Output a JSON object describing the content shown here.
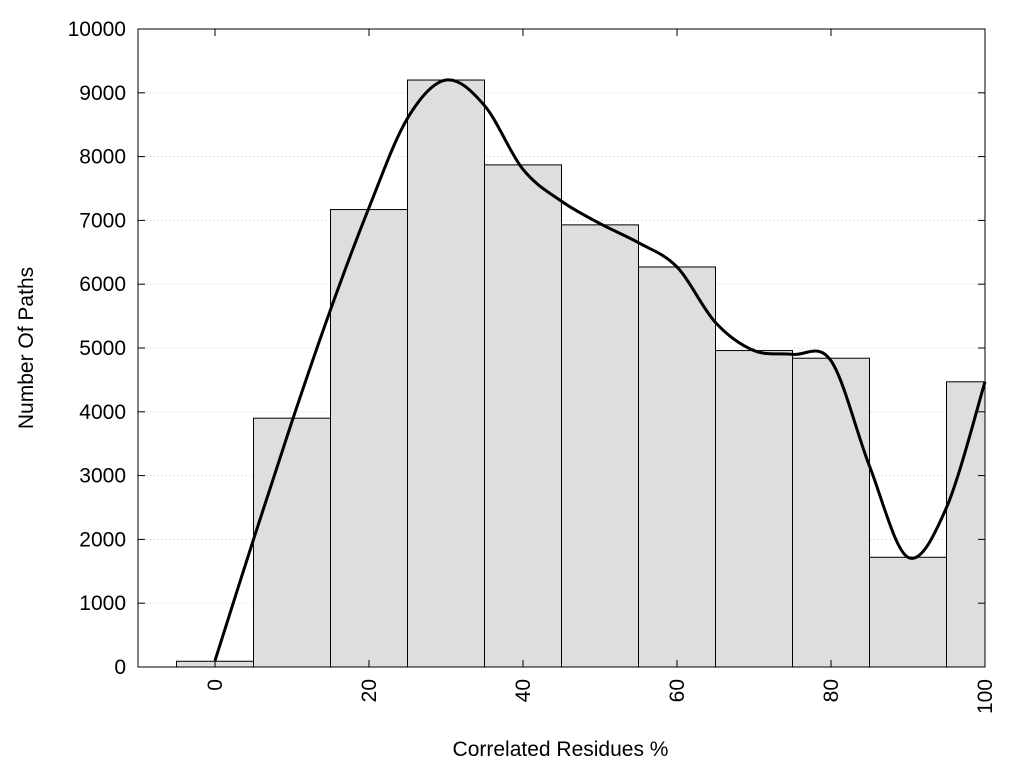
{
  "chart_data": {
    "type": "bar",
    "title": "",
    "xlabel": "Correlated Residues %",
    "ylabel": "Number Of Paths",
    "xlim": [
      -10,
      100
    ],
    "ylim": [
      0,
      10000
    ],
    "grid": "horizontal-dotted",
    "legend": "none",
    "bar_width": 10,
    "x_ticks": [
      0,
      20,
      40,
      60,
      80,
      100
    ],
    "y_ticks": [
      0,
      1000,
      2000,
      3000,
      4000,
      5000,
      6000,
      7000,
      8000,
      9000,
      10000
    ],
    "bars": {
      "x": [
        0,
        10,
        20,
        30,
        40,
        50,
        60,
        70,
        80,
        90,
        100
      ],
      "values": [
        90,
        3900,
        7170,
        9200,
        7870,
        6930,
        6270,
        4960,
        4840,
        1720,
        4470
      ],
      "color": "#dedede"
    },
    "curve": {
      "x": [
        0,
        5,
        10,
        15,
        20,
        25,
        30,
        35,
        40,
        45,
        50,
        55,
        60,
        65,
        70,
        75,
        80,
        85,
        90,
        95,
        100
      ],
      "values": [
        100,
        2000,
        3850,
        5600,
        7200,
        8600,
        9200,
        8800,
        7800,
        7300,
        6950,
        6650,
        6270,
        5400,
        4960,
        4900,
        4800,
        3150,
        1720,
        2500,
        4470
      ],
      "color": "#000000"
    }
  }
}
